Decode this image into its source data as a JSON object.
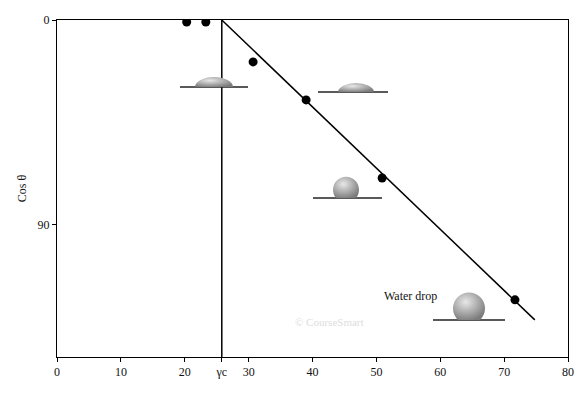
{
  "chart_data": {
    "type": "scatter",
    "y_label": "Cos θ",
    "xlim": [
      0,
      80
    ],
    "ylim": [
      148,
      0
    ],
    "xticks": [
      0,
      10,
      20,
      {
        "value": 25.8,
        "label": "γc"
      },
      30,
      40,
      50,
      60,
      70,
      80
    ],
    "yticks": [
      0,
      90
    ],
    "grid": false,
    "series": [
      {
        "type": "scatter",
        "marker": "circle",
        "color": "#000000",
        "x": [
          20.3,
          23.3,
          30.7,
          39.0,
          50.9,
          71.7
        ],
        "values": [
          0.9,
          0.9,
          18.4,
          35.1,
          69.4,
          122.9
        ]
      },
      {
        "type": "line",
        "line_style": "solid",
        "color": "#000000",
        "x": [
          25.8,
          74.8
        ],
        "values": [
          0,
          131.7
        ]
      },
      {
        "type": "line",
        "line_style": "solid",
        "color": "#000000",
        "x": [
          25.8,
          25.8
        ],
        "values": [
          0,
          148
        ]
      }
    ],
    "annotations": [
      {
        "text": "Water drop",
        "x": 55.3,
        "y": 121
      },
      {
        "text": "© CourseSmart",
        "x": 42.7,
        "y": 132.6
      }
    ]
  }
}
